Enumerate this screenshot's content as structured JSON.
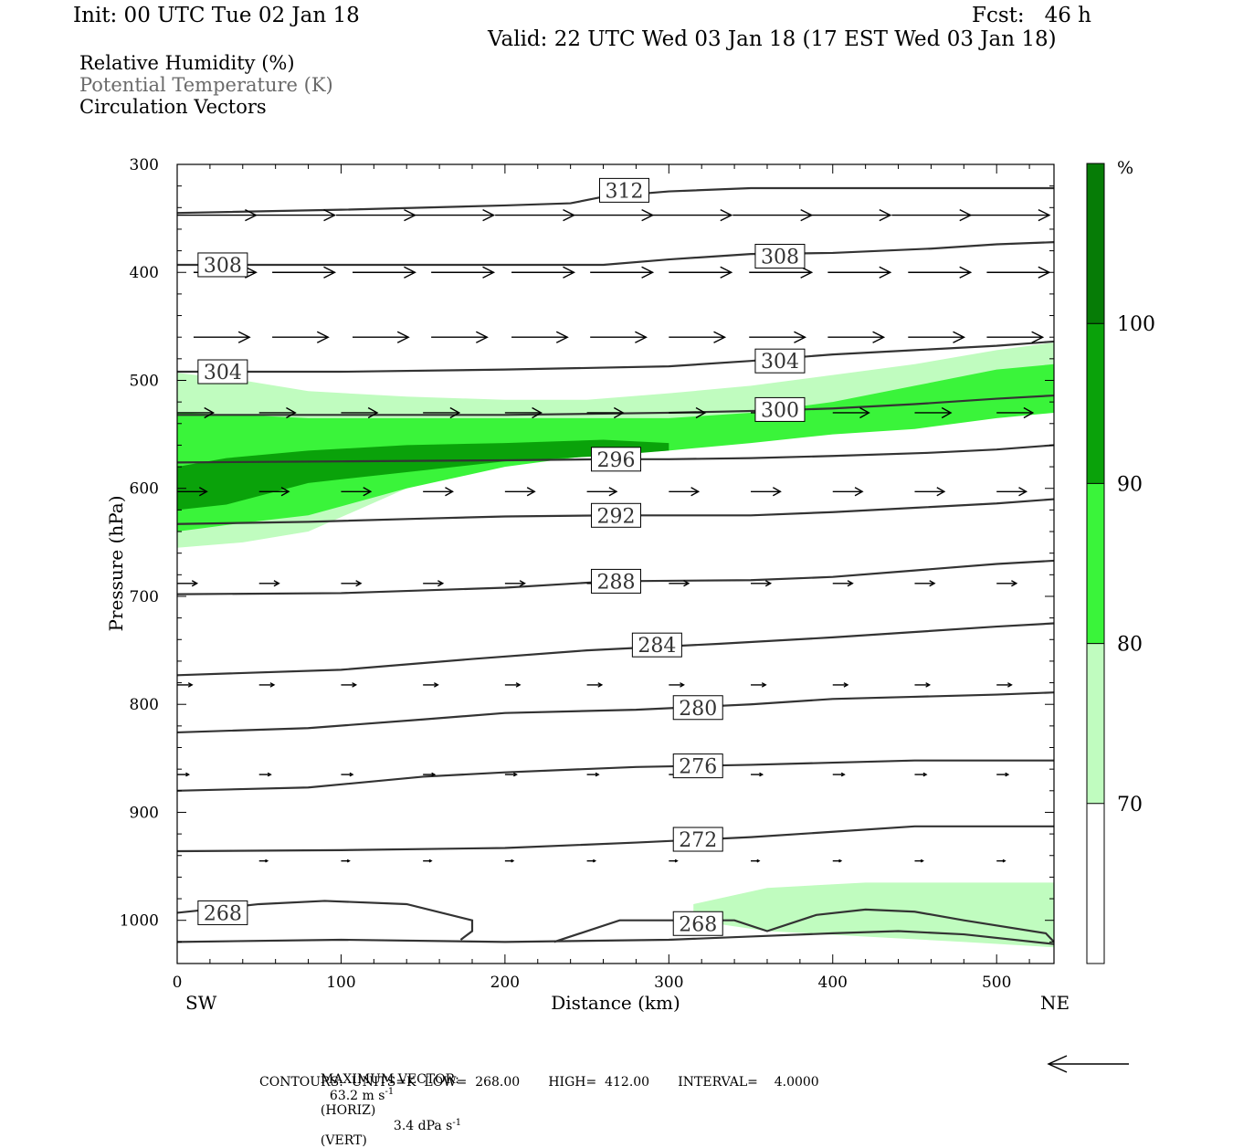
{
  "header": {
    "init": "Init: 00 UTC Tue 02 Jan 18",
    "fcst": "Fcst:   46 h",
    "valid": "Valid: 22 UTC Wed 03 Jan 18 (17 EST Wed 03 Jan 18)"
  },
  "legend": {
    "rh": "Relative Humidity (%)",
    "theta": "Potential Temperature (K)",
    "vectors": "Circulation Vectors"
  },
  "footer": {
    "max_vector_label": "MAXIMUM VECTOR:",
    "max_horiz": "63.2 m s",
    "horiz_exp": "-1",
    "horiz_tag": "(HORIZ)",
    "max_vert": "3.4 dPa s",
    "vert_exp": "-1",
    "vert_tag": "(VERT)",
    "contours": "CONTOURS:  UNITS=K  LOW=  268.00       HIGH=  412.00       INTERVAL=    4.0000"
  },
  "colors": {
    "rh70": "#c0fcbf",
    "rh80": "#3af43a",
    "rh90": "#0aa20a",
    "rh100": "#067c06",
    "contour": "#333333"
  },
  "chart_data": {
    "type": "cross-section",
    "xlabel": "Distance (km)",
    "ylabel": "Pressure (hPa)",
    "xlim": [
      0,
      535
    ],
    "ylim": [
      300,
      1040
    ],
    "x_ticks": [
      0,
      100,
      200,
      300,
      400,
      500
    ],
    "y_ticks": [
      300,
      400,
      500,
      600,
      700,
      800,
      900,
      1000
    ],
    "left_end": "SW",
    "right_end": "NE",
    "colorbar": {
      "unit": "%",
      "levels": [
        70,
        80,
        90,
        100
      ],
      "labels": [
        "70",
        "80",
        "90",
        "100"
      ]
    },
    "rh_fill": [
      {
        "level": 70,
        "band": [
          [
            0,
            493,
            655
          ],
          [
            40,
            500,
            650
          ],
          [
            80,
            510,
            640
          ],
          [
            140,
            515,
            600
          ],
          [
            200,
            518,
            575
          ],
          [
            250,
            518,
            565
          ],
          [
            300,
            512,
            560
          ],
          [
            350,
            505,
            555
          ],
          [
            400,
            495,
            540
          ],
          [
            450,
            485,
            535
          ],
          [
            500,
            472,
            530
          ],
          [
            535,
            465,
            530
          ]
        ]
      },
      {
        "level": 80,
        "band": [
          [
            0,
            530,
            640
          ],
          [
            40,
            532,
            632
          ],
          [
            80,
            535,
            625
          ],
          [
            140,
            535,
            600
          ],
          [
            200,
            535,
            580
          ],
          [
            250,
            535,
            570
          ],
          [
            300,
            535,
            565
          ],
          [
            350,
            530,
            558
          ],
          [
            400,
            520,
            550
          ],
          [
            450,
            505,
            545
          ],
          [
            500,
            490,
            535
          ],
          [
            535,
            485,
            530
          ]
        ]
      },
      {
        "level": 90,
        "band": [
          [
            0,
            580,
            620
          ],
          [
            30,
            572,
            615
          ],
          [
            80,
            565,
            595
          ],
          [
            140,
            560,
            585
          ],
          [
            200,
            558,
            575
          ],
          [
            260,
            555,
            570
          ],
          [
            300,
            558,
            565
          ]
        ]
      },
      {
        "level": 70,
        "band": [
          [
            315,
            985,
            1000
          ],
          [
            360,
            970,
            1010
          ],
          [
            420,
            965,
            1015
          ],
          [
            480,
            965,
            1020
          ],
          [
            535,
            965,
            1025
          ]
        ]
      }
    ],
    "theta_contours": [
      {
        "label": "312",
        "label_x": 270,
        "label_p": 324,
        "points": [
          [
            0,
            345
          ],
          [
            100,
            342
          ],
          [
            200,
            338
          ],
          [
            240,
            336
          ],
          [
            260,
            330
          ],
          [
            300,
            325
          ],
          [
            350,
            322
          ],
          [
            400,
            322
          ],
          [
            535,
            322
          ]
        ]
      },
      {
        "label": "308",
        "label_x": 25,
        "label_p": 393,
        "points": [
          [
            0,
            393
          ],
          [
            100,
            393
          ],
          [
            200,
            393
          ],
          [
            260,
            393
          ],
          [
            300,
            388
          ],
          [
            350,
            383
          ],
          [
            400,
            382
          ],
          [
            460,
            378
          ],
          [
            500,
            374
          ],
          [
            535,
            372
          ]
        ]
      },
      {
        "label": "308",
        "label_x": 365,
        "label_p": 385,
        "points": []
      },
      {
        "label": "304",
        "label_x": 25,
        "label_p": 492,
        "points": [
          [
            0,
            492
          ],
          [
            100,
            492
          ],
          [
            200,
            490
          ],
          [
            300,
            487
          ],
          [
            350,
            482
          ],
          [
            400,
            476
          ],
          [
            450,
            472
          ],
          [
            500,
            468
          ],
          [
            535,
            464
          ]
        ]
      },
      {
        "label": "304",
        "label_x": 365,
        "label_p": 482,
        "points": []
      },
      {
        "label": "300",
        "label_x": 365,
        "label_p": 527,
        "points": [
          [
            0,
            532
          ],
          [
            100,
            532
          ],
          [
            200,
            532
          ],
          [
            300,
            530
          ],
          [
            360,
            528
          ],
          [
            400,
            526
          ],
          [
            450,
            522
          ],
          [
            500,
            517
          ],
          [
            535,
            514
          ]
        ]
      },
      {
        "label": "296",
        "label_x": 265,
        "label_p": 573,
        "points": [
          [
            0,
            576
          ],
          [
            100,
            575
          ],
          [
            200,
            574
          ],
          [
            265,
            573
          ],
          [
            300,
            573
          ],
          [
            350,
            572
          ],
          [
            400,
            570
          ],
          [
            460,
            567
          ],
          [
            500,
            564
          ],
          [
            535,
            560
          ]
        ]
      },
      {
        "label": "292",
        "label_x": 265,
        "label_p": 625,
        "points": [
          [
            0,
            633
          ],
          [
            80,
            631
          ],
          [
            150,
            628
          ],
          [
            200,
            626
          ],
          [
            265,
            625
          ],
          [
            350,
            625
          ],
          [
            400,
            622
          ],
          [
            450,
            618
          ],
          [
            500,
            614
          ],
          [
            535,
            610
          ]
        ]
      },
      {
        "label": "288",
        "label_x": 265,
        "label_p": 686,
        "points": [
          [
            0,
            698
          ],
          [
            100,
            697
          ],
          [
            200,
            692
          ],
          [
            265,
            686
          ],
          [
            350,
            685
          ],
          [
            400,
            682
          ],
          [
            450,
            676
          ],
          [
            500,
            670
          ],
          [
            535,
            667
          ]
        ]
      },
      {
        "label": "284",
        "label_x": 290,
        "label_p": 745,
        "points": [
          [
            0,
            773
          ],
          [
            100,
            768
          ],
          [
            180,
            758
          ],
          [
            250,
            750
          ],
          [
            330,
            744
          ],
          [
            400,
            738
          ],
          [
            450,
            733
          ],
          [
            500,
            728
          ],
          [
            535,
            725
          ]
        ]
      },
      {
        "label": "280",
        "label_x": 315,
        "label_p": 803,
        "points": [
          [
            0,
            826
          ],
          [
            80,
            822
          ],
          [
            150,
            814
          ],
          [
            200,
            808
          ],
          [
            280,
            805
          ],
          [
            350,
            800
          ],
          [
            400,
            795
          ],
          [
            450,
            793
          ],
          [
            500,
            791
          ],
          [
            535,
            789
          ]
        ]
      },
      {
        "label": "276",
        "label_x": 315,
        "label_p": 857,
        "points": [
          [
            0,
            880
          ],
          [
            80,
            877
          ],
          [
            150,
            867
          ],
          [
            200,
            863
          ],
          [
            280,
            858
          ],
          [
            350,
            856
          ],
          [
            400,
            854
          ],
          [
            450,
            852
          ],
          [
            535,
            852
          ]
        ]
      },
      {
        "label": "272",
        "label_x": 315,
        "label_p": 925,
        "points": [
          [
            0,
            936
          ],
          [
            100,
            935
          ],
          [
            200,
            933
          ],
          [
            280,
            928
          ],
          [
            350,
            923
          ],
          [
            400,
            918
          ],
          [
            450,
            913
          ],
          [
            535,
            913
          ]
        ]
      },
      {
        "label": "268",
        "label_x": 25,
        "label_p": 993,
        "points": [
          [
            0,
            993
          ],
          [
            50,
            985
          ],
          [
            90,
            982
          ],
          [
            140,
            985
          ],
          [
            180,
            1000
          ],
          [
            180,
            1010
          ],
          [
            173,
            1018
          ]
        ]
      },
      {
        "label": "268",
        "label_x": 315,
        "label_p": 1003,
        "points": [
          [
            230,
            1020
          ],
          [
            270,
            1000
          ],
          [
            340,
            1000
          ],
          [
            360,
            1010
          ],
          [
            390,
            995
          ],
          [
            420,
            990
          ],
          [
            450,
            992
          ],
          [
            480,
            1000
          ],
          [
            530,
            1012
          ],
          [
            535,
            1020
          ]
        ]
      },
      {
        "label": "",
        "label_x": 0,
        "label_p": 0,
        "points": [
          [
            0,
            1020
          ],
          [
            100,
            1018
          ],
          [
            200,
            1020
          ],
          [
            300,
            1018
          ],
          [
            350,
            1015
          ],
          [
            400,
            1012
          ],
          [
            440,
            1010
          ],
          [
            480,
            1013
          ],
          [
            535,
            1022
          ]
        ]
      }
    ],
    "vector_rows": [
      {
        "p": 347,
        "xs": [
          0,
          48,
          97,
          145,
          194,
          242,
          290,
          339,
          387,
          436,
          484
        ],
        "len": 48
      },
      {
        "p": 400,
        "xs": [
          10,
          58,
          107,
          155,
          204,
          252,
          300,
          349,
          397,
          446,
          494
        ],
        "len": 38
      },
      {
        "p": 460,
        "xs": [
          10,
          58,
          107,
          155,
          204,
          252,
          300,
          349,
          397,
          446,
          494
        ],
        "len": 34
      },
      {
        "p": 530,
        "xs": [
          0,
          50,
          100,
          150,
          200,
          250,
          300,
          350,
          400,
          450,
          500
        ],
        "len": 22
      },
      {
        "p": 603,
        "xs": [
          0,
          50,
          100,
          150,
          200,
          250,
          300,
          350,
          400,
          450,
          500
        ],
        "len": 18
      },
      {
        "p": 688,
        "xs": [
          0,
          50,
          100,
          150,
          200,
          250,
          300,
          350,
          400,
          450,
          500
        ],
        "len": 12
      },
      {
        "p": 782,
        "xs": [
          0,
          50,
          100,
          150,
          200,
          250,
          300,
          350,
          400,
          450,
          500
        ],
        "len": 9
      },
      {
        "p": 865,
        "xs": [
          0,
          50,
          100,
          150,
          200,
          250,
          300,
          350,
          400,
          450,
          500
        ],
        "len": 7
      },
      {
        "p": 945,
        "xs": [
          50,
          100,
          150,
          200,
          250,
          300,
          350,
          400,
          450,
          500
        ],
        "len": 5
      }
    ]
  }
}
